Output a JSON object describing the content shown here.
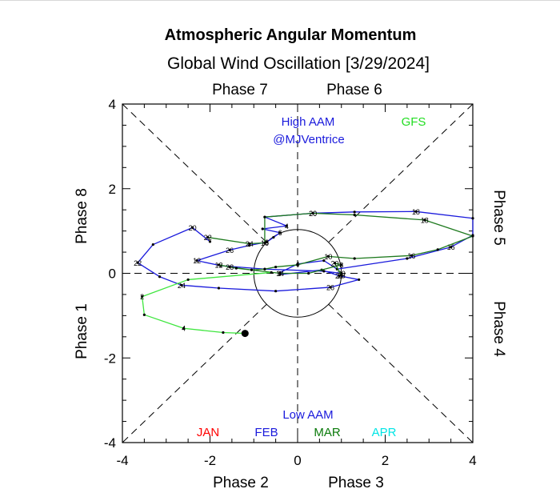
{
  "chart_data": {
    "type": "scatter",
    "title": "Atmospheric Angular Momentum",
    "subtitle": "Global Wind Oscillation [3/29/2024]",
    "xlim": [
      -4,
      4
    ],
    "ylim": [
      -4,
      4
    ],
    "x_ticks": [
      "-4",
      "-2",
      "0",
      "2",
      "4"
    ],
    "y_ticks": [
      "-4",
      "-2",
      "0",
      "2",
      "4"
    ],
    "phase_labels": {
      "top_left": "Phase 7",
      "top_right": "Phase 6",
      "left_upper": "Phase 8",
      "left_lower": "Phase 1",
      "right_upper": "Phase 5",
      "right_lower": "Phase 4",
      "bottom_left": "Phase 2",
      "bottom_right": "Phase 3"
    },
    "annotations": {
      "high": "High AAM",
      "credit": "@MJVentrice",
      "low": "Low AAM",
      "model": "GFS"
    },
    "legend": [
      {
        "label": "JAN",
        "color": "#ff0000"
      },
      {
        "label": "FEB",
        "color": "#1a1adc"
      },
      {
        "label": "MAR",
        "color": "#0a7a0a"
      },
      {
        "label": "APR",
        "color": "#00e5e5"
      }
    ],
    "colors": {
      "feb": "#1a1adc",
      "mar": "#1e7a1e",
      "forecast": "#3ee63e",
      "grid": "#000000"
    },
    "series": [
      {
        "name": "FEB",
        "color": "#1a1adc",
        "points": [
          {
            "x": -2.0,
            "y": 0.75
          },
          {
            "x": -2.4,
            "y": 1.08,
            "label": "20"
          },
          {
            "x": -3.3,
            "y": 0.68
          },
          {
            "x": -3.65,
            "y": 0.25,
            "label": "22"
          },
          {
            "x": -3.15,
            "y": -0.08
          },
          {
            "x": -2.65,
            "y": -0.28,
            "label": "24"
          },
          {
            "x": -1.8,
            "y": -0.35
          },
          {
            "x": -0.5,
            "y": -0.42
          },
          {
            "x": 0.75,
            "y": -0.33,
            "label": "26"
          },
          {
            "x": 1.4,
            "y": -0.15
          },
          {
            "x": 0.95,
            "y": -0.06,
            "label": "28"
          },
          {
            "x": 0.55,
            "y": 0.08
          },
          {
            "x": -0.4,
            "y": -0.03
          },
          {
            "x": -0.4,
            "y": 0.02
          },
          {
            "x": 0.0,
            "y": 0.22,
            "label": "4"
          },
          {
            "x": 0.6,
            "y": 0.3
          },
          {
            "x": 0.9,
            "y": 0.1
          },
          {
            "x": 2.5,
            "y": 0.35
          },
          {
            "x": 3.5,
            "y": 0.62,
            "label": "16"
          },
          {
            "x": 4.0,
            "y": 0.9
          },
          {
            "x": 4.0,
            "y": 1.3
          },
          {
            "x": 2.7,
            "y": 1.46,
            "label": "18"
          },
          {
            "x": 1.3,
            "y": 1.45
          },
          {
            "x": 0.35,
            "y": 1.42,
            "label": "20"
          },
          {
            "x": -0.75,
            "y": 1.33
          },
          {
            "x": -0.25,
            "y": 1.12,
            "label": "4"
          },
          {
            "x": -0.8,
            "y": 1.05
          },
          {
            "x": -0.4,
            "y": 0.96,
            "label": "6"
          },
          {
            "x": -0.55,
            "y": 0.85
          },
          {
            "x": -0.7,
            "y": 0.74,
            "label": "8"
          },
          {
            "x": -1.1,
            "y": 0.66
          },
          {
            "x": -1.55,
            "y": 0.55,
            "label": "26"
          },
          {
            "x": -2.3,
            "y": 0.3,
            "label": "12"
          },
          {
            "x": -1.75,
            "y": 0.18
          },
          {
            "x": -0.75,
            "y": 0.1
          },
          {
            "x": 0.6,
            "y": 0.05
          },
          {
            "x": 1.0,
            "y": 0.0,
            "label": "30"
          }
        ]
      },
      {
        "name": "MAR",
        "color": "#1e7a1e",
        "points": [
          {
            "x": -2.05,
            "y": 0.85,
            "label": "22"
          },
          {
            "x": -1.1,
            "y": 0.7,
            "label": "24"
          },
          {
            "x": -0.75,
            "y": 0.72,
            "label": "16"
          },
          {
            "x": -0.75,
            "y": 1.33
          },
          {
            "x": 0.35,
            "y": 1.42,
            "label": "20"
          },
          {
            "x": 1.3,
            "y": 1.38
          },
          {
            "x": 2.9,
            "y": 1.26,
            "label": "18"
          },
          {
            "x": 4.0,
            "y": 0.88
          },
          {
            "x": 3.2,
            "y": 0.56
          },
          {
            "x": 2.6,
            "y": 0.42,
            "label": "16"
          },
          {
            "x": 1.3,
            "y": 0.35
          },
          {
            "x": 0.7,
            "y": 0.4,
            "label": "10"
          },
          {
            "x": 0.0,
            "y": 0.2
          },
          {
            "x": -0.5,
            "y": 0.15
          },
          {
            "x": -0.75,
            "y": 0.1
          },
          {
            "x": -1.05,
            "y": 0.08
          },
          {
            "x": -1.55,
            "y": 0.15,
            "label": "28"
          },
          {
            "x": -1.8,
            "y": 0.2,
            "label": "12"
          },
          {
            "x": -1.4,
            "y": 0.12
          },
          {
            "x": -0.4,
            "y": 0.0,
            "label": "14"
          },
          {
            "x": 0.25,
            "y": 0.0
          },
          {
            "x": 1.0,
            "y": 0.2,
            "label": "8"
          },
          {
            "x": 0.85,
            "y": 0.24,
            "label": "20"
          },
          {
            "x": 1.0,
            "y": -0.05,
            "label": "28"
          }
        ]
      },
      {
        "name": "GFS",
        "color": "#3ee63e",
        "points": [
          {
            "x": -0.6,
            "y": 0.02
          },
          {
            "x": -2.5,
            "y": -0.15
          },
          {
            "x": -3.55,
            "y": -0.55,
            "label": "2"
          },
          {
            "x": -3.5,
            "y": -0.98
          },
          {
            "x": -2.6,
            "y": -1.3,
            "label": "4"
          },
          {
            "x": -1.7,
            "y": -1.4
          },
          {
            "x": -1.2,
            "y": -1.42,
            "marker": "end"
          }
        ]
      }
    ]
  }
}
